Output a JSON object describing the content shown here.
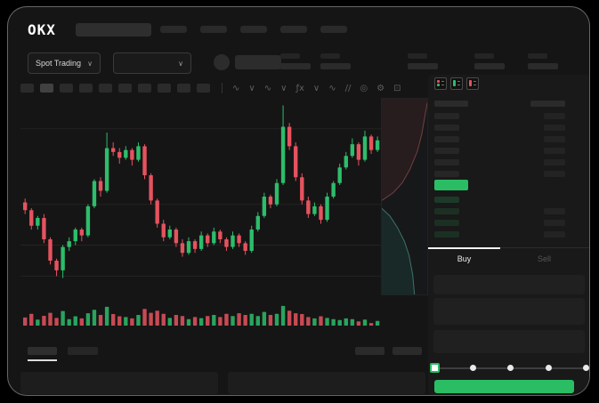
{
  "brand": "OKX",
  "header": {
    "market_type_label": "Spot Trading"
  },
  "side_tabs": {
    "buy": "Buy",
    "sell": "Sell"
  },
  "colors": {
    "up_green": "#2dbd6b",
    "down_red": "#e5535f",
    "accent_green": "#2abd64",
    "panel_bg": "#191919",
    "surface_bg": "#151515"
  },
  "chart_toolbar": {
    "timeframe_buttons": 10,
    "selected_timeframe_index": 1,
    "icons": [
      {
        "name": "indicators-wave-icon",
        "glyph": "∿"
      },
      {
        "name": "chevron-down-icon",
        "glyph": "∨"
      },
      {
        "name": "candle-style-icon",
        "glyph": "∿"
      },
      {
        "name": "chevron-down-icon",
        "glyph": "∨"
      },
      {
        "name": "fx-indicator-icon",
        "glyph": "ƒx"
      },
      {
        "name": "chevron-down-icon",
        "glyph": "∨"
      },
      {
        "name": "line-tool-icon",
        "glyph": "∿"
      },
      {
        "name": "compare-icon",
        "glyph": "//"
      },
      {
        "name": "camera-icon",
        "glyph": "◎"
      },
      {
        "name": "settings-gear-icon",
        "glyph": "⚙"
      },
      {
        "name": "fullscreen-icon",
        "glyph": "⊡"
      }
    ]
  },
  "skeleton": {
    "nav_items": 5,
    "stat_pair_lefts": [
      292,
      337,
      435,
      510,
      570
    ]
  },
  "chart_data": {
    "type": "candlestick",
    "title": "",
    "xlabel": "",
    "ylabel": "",
    "x_axis_labels_visible": false,
    "y_axis_labels_visible": false,
    "ylim_normalized": [
      0,
      100
    ],
    "grid_values": [
      85,
      46,
      25,
      9
    ],
    "candles": [
      [
        47,
        49,
        41,
        43
      ],
      [
        43,
        44,
        33,
        35
      ],
      [
        35,
        40,
        33,
        39
      ],
      [
        39,
        41,
        26,
        28
      ],
      [
        28,
        29,
        15,
        17
      ],
      [
        17,
        18,
        9,
        12
      ],
      [
        12,
        25,
        8,
        24
      ],
      [
        24,
        29,
        22,
        27
      ],
      [
        27,
        34,
        25,
        33
      ],
      [
        33,
        34,
        27,
        30
      ],
      [
        30,
        46,
        29,
        45
      ],
      [
        45,
        59,
        44,
        58
      ],
      [
        58,
        60,
        50,
        53
      ],
      [
        53,
        83,
        52,
        75
      ],
      [
        75,
        78,
        71,
        73
      ],
      [
        73,
        75,
        67,
        70
      ],
      [
        70,
        76,
        69,
        74
      ],
      [
        74,
        75,
        66,
        69
      ],
      [
        69,
        78,
        68,
        76
      ],
      [
        76,
        77,
        59,
        61
      ],
      [
        61,
        62,
        46,
        48
      ],
      [
        48,
        49,
        34,
        36
      ],
      [
        36,
        38,
        27,
        29
      ],
      [
        29,
        35,
        28,
        33
      ],
      [
        33,
        34,
        24,
        26
      ],
      [
        26,
        28,
        19,
        21
      ],
      [
        21,
        29,
        20,
        27
      ],
      [
        27,
        28,
        21,
        23
      ],
      [
        23,
        32,
        22,
        30
      ],
      [
        30,
        31,
        24,
        26
      ],
      [
        26,
        34,
        25,
        32
      ],
      [
        32,
        33,
        26,
        28
      ],
      [
        28,
        29,
        22,
        24
      ],
      [
        24,
        32,
        23,
        30
      ],
      [
        30,
        31,
        24,
        26
      ],
      [
        26,
        27,
        20,
        22
      ],
      [
        22,
        35,
        21,
        33
      ],
      [
        33,
        42,
        32,
        40
      ],
      [
        40,
        52,
        39,
        50
      ],
      [
        50,
        51,
        44,
        46
      ],
      [
        46,
        59,
        45,
        57
      ],
      [
        57,
        97,
        56,
        86
      ],
      [
        86,
        88,
        74,
        76
      ],
      [
        76,
        78,
        58,
        60
      ],
      [
        60,
        62,
        46,
        48
      ],
      [
        48,
        50,
        39,
        41
      ],
      [
        41,
        47,
        40,
        45
      ],
      [
        45,
        46,
        36,
        38
      ],
      [
        38,
        52,
        37,
        50
      ],
      [
        50,
        58,
        49,
        57
      ],
      [
        57,
        67,
        56,
        65
      ],
      [
        65,
        73,
        64,
        71
      ],
      [
        71,
        80,
        70,
        77
      ],
      [
        77,
        78,
        66,
        69
      ],
      [
        69,
        84,
        68,
        81
      ],
      [
        81,
        82,
        72,
        74
      ],
      [
        74,
        81,
        73,
        79
      ]
    ],
    "volumes": [
      38,
      55,
      28,
      46,
      60,
      36,
      68,
      30,
      44,
      34,
      58,
      74,
      50,
      88,
      54,
      44,
      40,
      34,
      50,
      78,
      60,
      70,
      55,
      36,
      50,
      45,
      30,
      40,
      35,
      45,
      50,
      40,
      55,
      45,
      58,
      50,
      55,
      45,
      64,
      50,
      55,
      92,
      70,
      58,
      54,
      40,
      34,
      44,
      36,
      30,
      26,
      34,
      30,
      20,
      28,
      12,
      22
    ]
  },
  "depth_chart": {
    "asks_curve": [
      [
        1,
        0.02
      ],
      [
        0.88,
        0.18
      ],
      [
        0.78,
        0.27
      ],
      [
        0.62,
        0.36
      ],
      [
        0.45,
        0.43
      ],
      [
        0.25,
        0.48
      ],
      [
        0,
        0.52
      ]
    ],
    "bids_curve": [
      [
        0,
        0.56
      ],
      [
        0.18,
        0.6
      ],
      [
        0.35,
        0.66
      ],
      [
        0.5,
        0.73
      ],
      [
        0.6,
        0.8
      ],
      [
        0.68,
        0.9
      ],
      [
        0.72,
        1
      ]
    ],
    "asks_fill": "rgba(190,70,70,0.10)",
    "asks_stroke": "rgba(215,115,115,0.45)",
    "bids_fill": "rgba(45,150,130,0.14)",
    "bids_stroke": "rgba(95,195,175,0.5)"
  },
  "order_book": {
    "view_icons": [
      {
        "name": "book-combined-view-icon"
      },
      {
        "name": "book-bids-view-icon"
      },
      {
        "name": "book-asks-view-icon"
      }
    ],
    "ask_rows": 6,
    "bid_rows": [
      {
        "has_right": false
      },
      {
        "has_right": true
      },
      {
        "has_right": true
      },
      {
        "has_right": true
      }
    ],
    "last_price_bar_color": "#2abd64"
  },
  "amount_slider": {
    "stops": [
      0,
      25,
      50,
      75,
      100
    ],
    "active_index": 0
  }
}
